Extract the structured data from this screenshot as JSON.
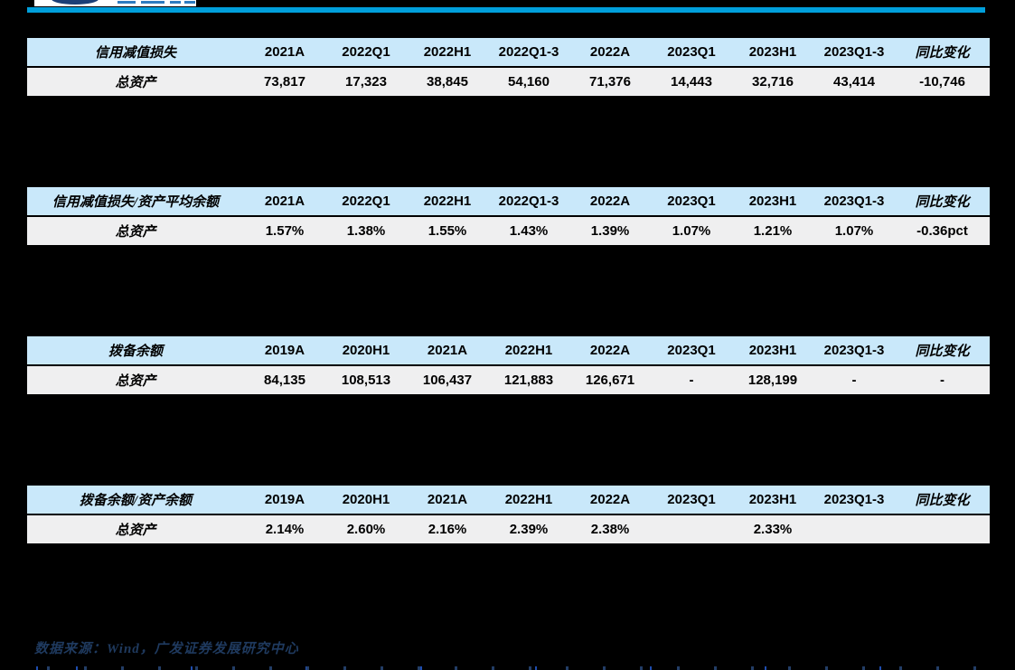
{
  "page": {
    "source_note": "数据来源：Wind，广发证券发展研究中心"
  },
  "colors": {
    "page_bg": "#000000",
    "rule": "#009fdb",
    "table_header_bg": "#c9e8fa",
    "table_row_bg": "#efeff0",
    "table_border": "#000000",
    "table_text": "#000000",
    "footer_text": "#1f3a5f",
    "logo_navy": "#1c3f77",
    "logo_blue": "#2e7cc0"
  },
  "tables": [
    {
      "label": "信用减值损失",
      "columns": [
        "2021A",
        "2022Q1",
        "2022H1",
        "2022Q1-3",
        "2022A",
        "2023Q1",
        "2023H1",
        "2023Q1-3",
        "同比变化"
      ],
      "rows": [
        {
          "label": "总资产",
          "values": [
            "73,817",
            "17,323",
            "38,845",
            "54,160",
            "71,376",
            "14,443",
            "32,716",
            "43,414",
            "-10,746"
          ]
        }
      ]
    },
    {
      "label": "信用减值损失/资产平均余额",
      "columns": [
        "2021A",
        "2022Q1",
        "2022H1",
        "2022Q1-3",
        "2022A",
        "2023Q1",
        "2023H1",
        "2023Q1-3",
        "同比变化"
      ],
      "rows": [
        {
          "label": "总资产",
          "values": [
            "1.57%",
            "1.38%",
            "1.55%",
            "1.43%",
            "1.39%",
            "1.07%",
            "1.21%",
            "1.07%",
            "-0.36pct"
          ]
        }
      ]
    },
    {
      "label": "拨备余额",
      "columns": [
        "2019A",
        "2020H1",
        "2021A",
        "2022H1",
        "2022A",
        "2023Q1",
        "2023H1",
        "2023Q1-3",
        "同比变化"
      ],
      "rows": [
        {
          "label": "总资产",
          "values": [
            "84,135",
            "108,513",
            "106,437",
            "121,883",
            "126,671",
            "-",
            "128,199",
            "-",
            "-"
          ]
        }
      ]
    },
    {
      "label": "拨备余额/资产余额",
      "columns": [
        "2019A",
        "2020H1",
        "2021A",
        "2022H1",
        "2022A",
        "2023Q1",
        "2023H1",
        "2023Q1-3",
        "同比变化"
      ],
      "rows": [
        {
          "label": "总资产",
          "values": [
            "2.14%",
            "2.60%",
            "2.16%",
            "2.39%",
            "2.38%",
            "",
            "2.33%",
            "",
            ""
          ]
        }
      ]
    }
  ]
}
